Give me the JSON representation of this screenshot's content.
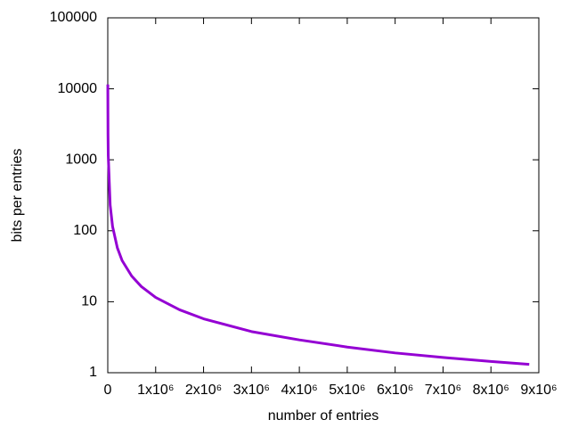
{
  "chart_data": {
    "type": "line",
    "xlabel": "number of entries",
    "ylabel": "bits per entries",
    "log_y": true,
    "xlim": [
      0,
      9000000
    ],
    "ylim": [
      1,
      100000
    ],
    "xticks": [
      0,
      {
        "value": 1000000,
        "label": "1x10⁶"
      },
      {
        "value": 2000000,
        "label": "2x10⁶"
      },
      {
        "value": 3000000,
        "label": "3x10⁶"
      },
      {
        "value": 4000000,
        "label": "4x10⁶"
      },
      {
        "value": 5000000,
        "label": "5x10⁶"
      },
      {
        "value": 6000000,
        "label": "6x10⁶"
      },
      {
        "value": 7000000,
        "label": "7x10⁶"
      },
      {
        "value": 8000000,
        "label": "8x10⁶"
      },
      {
        "value": 9000000,
        "label": "9x10⁶"
      }
    ],
    "yticks": [
      1,
      10,
      100,
      1000,
      10000,
      100000
    ],
    "series": [
      {
        "color": "#9400d3",
        "x": [
          1000,
          5000,
          10000,
          50000,
          100000,
          200000,
          300000,
          500000,
          700000,
          1000000,
          1500000,
          2000000,
          3000000,
          4000000,
          5000000,
          6000000,
          7000000,
          8000000,
          8800000
        ],
        "values": [
          11500,
          2300,
          1150,
          230,
          115,
          57.5,
          38,
          23,
          16.4,
          11.5,
          7.7,
          5.75,
          3.8,
          2.9,
          2.3,
          1.9,
          1.64,
          1.44,
          1.31
        ]
      }
    ]
  }
}
